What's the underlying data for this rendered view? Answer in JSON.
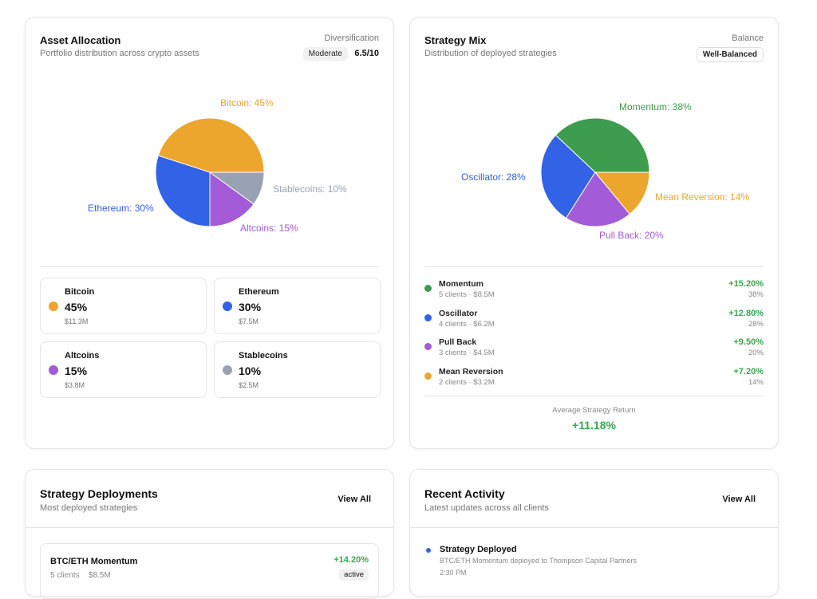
{
  "asset_allocation": {
    "title": "Asset Allocation",
    "subtitle": "Portfolio distribution across crypto assets",
    "metric_label": "Diversification",
    "badge": "Moderate",
    "score": "6.5/10",
    "slices": [
      {
        "label": "Bitcoin: 45%",
        "name": "Bitcoin",
        "value": 45,
        "amount": "$11.3M",
        "pct": "45%",
        "color": "#eca52d"
      },
      {
        "label": "Ethereum: 30%",
        "name": "Ethereum",
        "value": 30,
        "amount": "$7.5M",
        "pct": "30%",
        "color": "#3262e6"
      },
      {
        "label": "Altcoins: 15%",
        "name": "Altcoins",
        "value": 15,
        "amount": "$3.8M",
        "pct": "15%",
        "color": "#a35bd8"
      },
      {
        "label": "Stablecoins: 10%",
        "name": "Stablecoins",
        "value": 10,
        "amount": "$2.5M",
        "pct": "10%",
        "color": "#98a2b3"
      }
    ]
  },
  "strategy_mix": {
    "title": "Strategy Mix",
    "subtitle": "Distribution of deployed strategies",
    "metric_label": "Balance",
    "badge": "Well-Balanced",
    "slices": [
      {
        "label": "Momentum: 38%",
        "name": "Momentum",
        "value": 38,
        "meta": "5 clients · $8.5M",
        "ret": "+15.20%",
        "pct": "38%",
        "color": "#3d9c4d"
      },
      {
        "label": "Oscillator: 28%",
        "name": "Oscillator",
        "value": 28,
        "meta": "4 clients · $6.2M",
        "ret": "+12.80%",
        "pct": "28%",
        "color": "#3262e6"
      },
      {
        "label": "Pull Back: 20%",
        "name": "Pull Back",
        "value": 20,
        "meta": "3 clients · $4.5M",
        "ret": "+9.50%",
        "pct": "20%",
        "color": "#a35bd8"
      },
      {
        "label": "Mean Reversion: 14%",
        "name": "Mean Reversion",
        "value": 14,
        "meta": "2 clients · $3.2M",
        "ret": "+7.20%",
        "pct": "14%",
        "color": "#eca52d"
      }
    ],
    "avg_label": "Average Strategy Return",
    "avg_value": "+11.18%"
  },
  "deployments": {
    "title": "Strategy Deployments",
    "subtitle": "Most deployed strategies",
    "view_all": "View All",
    "items": [
      {
        "name": "BTC/ETH Momentum",
        "clients": "5 clients",
        "amount": "$8.5M",
        "ret": "+14.20%",
        "status": "active"
      }
    ]
  },
  "activity": {
    "title": "Recent Activity",
    "subtitle": "Latest updates across all clients",
    "view_all": "View All",
    "items": [
      {
        "title": "Strategy Deployed",
        "desc": "BTC/ETH Momentum deployed to Thompson Capital Partners",
        "time": "2:30 PM",
        "color": "#3262e6"
      }
    ]
  }
}
